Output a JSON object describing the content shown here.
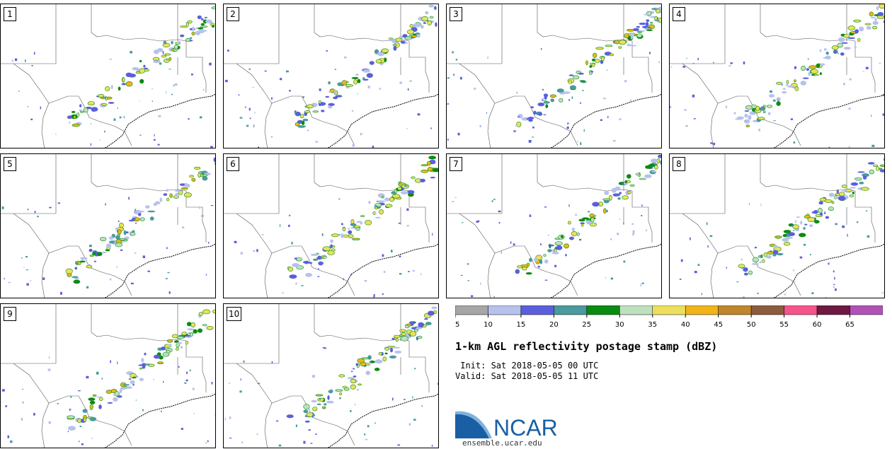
{
  "panels": [
    {
      "label": "1"
    },
    {
      "label": "2"
    },
    {
      "label": "3"
    },
    {
      "label": "4"
    },
    {
      "label": "5"
    },
    {
      "label": "6"
    },
    {
      "label": "7"
    },
    {
      "label": "8"
    },
    {
      "label": "9"
    },
    {
      "label": "10"
    }
  ],
  "colorbar": {
    "ticks": [
      "5",
      "10",
      "15",
      "20",
      "25",
      "30",
      "35",
      "40",
      "45",
      "50",
      "55",
      "60",
      "65"
    ],
    "colors": [
      "#a6a6a6",
      "#b7c2ec",
      "#5a5fdb",
      "#4a9a9e",
      "#0a8c10",
      "#bfe0bf",
      "#eddf5e",
      "#efb419",
      "#bf862c",
      "#8b5c3e",
      "#f6548a",
      "#6f1a42",
      "#b052b5"
    ]
  },
  "title": "1-km AGL reflectivity postage stamp (dBZ)",
  "init": " Init: Sat 2018-05-05 00 UTC",
  "valid": "Valid: Sat 2018-05-05 11 UTC",
  "logo": {
    "text": "NCAR",
    "url": "ensemble.ucar.edu"
  }
}
